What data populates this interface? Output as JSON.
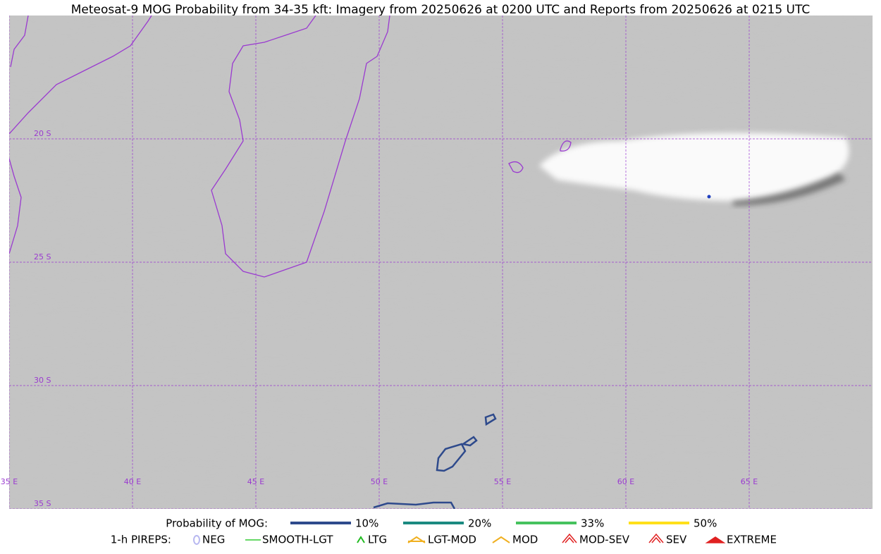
{
  "header": {
    "title": "Meteosat-9 MOG Probability from 34-35 kft: Imagery from 20250626 at 0200 UTC and Reports from 20250626 at 0215 UTC"
  },
  "map": {
    "lat_labels": [
      "20 S",
      "25 S",
      "30 S",
      "35 S"
    ],
    "lon_labels": [
      "35 E",
      "40 E",
      "45 E",
      "50 E",
      "55 E",
      "60 E",
      "65 E"
    ]
  },
  "legend": {
    "probability": {
      "title": "Probability of MOG:",
      "items": [
        {
          "label": "10%",
          "color": "#2e4a8c"
        },
        {
          "label": "20%",
          "color": "#1b8a80"
        },
        {
          "label": "33%",
          "color": "#45c25e"
        },
        {
          "label": "50%",
          "color": "#ffe01a"
        }
      ]
    },
    "pireps": {
      "title": "1-h PIREPS:",
      "items": [
        {
          "label": "NEG",
          "color": "#b8b8f0"
        },
        {
          "label": "SMOOTH-LGT",
          "color": "#33cc33"
        },
        {
          "label": "LTG",
          "color": "#22bb22"
        },
        {
          "label": "LGT-MOD",
          "color": "#f0b020"
        },
        {
          "label": "MOD",
          "color": "#f0b020"
        },
        {
          "label": "MOD-SEV",
          "color": "#e02020"
        },
        {
          "label": "SEV",
          "color": "#e02020"
        },
        {
          "label": "EXTREME",
          "color": "#e02020"
        }
      ]
    }
  }
}
